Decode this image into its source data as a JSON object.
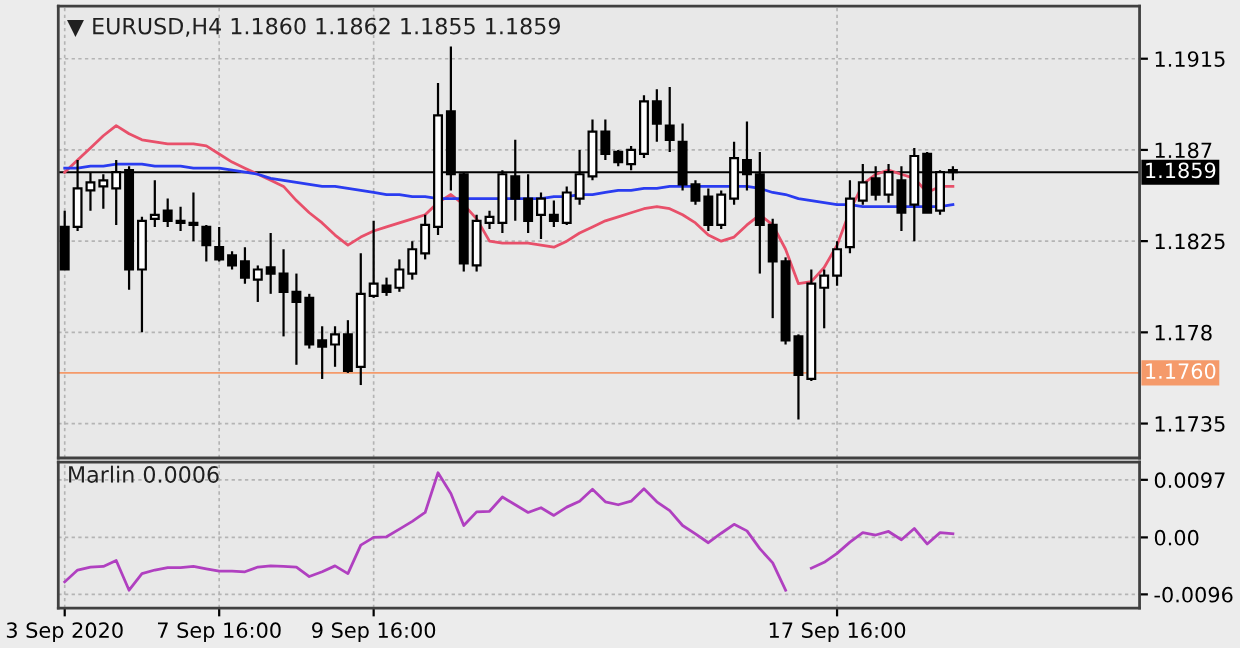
{
  "chart_data": [
    {
      "type": "candlestick",
      "title": "▼ EURUSD,H4 1.1860 1.1862 1.1855 1.1859",
      "color": "#000000",
      "categories": [
        null,
        null,
        null,
        null,
        null,
        null,
        null,
        null,
        null,
        null,
        null,
        null,
        null,
        null,
        null,
        null,
        null,
        null,
        null,
        null,
        null,
        null,
        null,
        null,
        null,
        null,
        null,
        null,
        null,
        null,
        null,
        null,
        null,
        null,
        null,
        null,
        null,
        null,
        null,
        null,
        null,
        null,
        null,
        null,
        null,
        null,
        null,
        null,
        null,
        null,
        null,
        null,
        null,
        null,
        null,
        null,
        null,
        null,
        null,
        null,
        null,
        null,
        null,
        null,
        null,
        null,
        null,
        null,
        null,
        null,
        null,
        null,
        null,
        null,
        null,
        null,
        null,
        null,
        null,
        null,
        null,
        null,
        null,
        null
      ],
      "ohlc": [
        [
          1.1832,
          1.184,
          1.1811,
          1.1811
        ],
        [
          1.1832,
          1.1865,
          1.183,
          1.1851
        ],
        [
          1.185,
          1.1859,
          1.184,
          1.1854
        ],
        [
          1.1852,
          1.1858,
          1.1841,
          1.1855
        ],
        [
          1.1851,
          1.1865,
          1.1833,
          1.1859
        ],
        [
          1.186,
          1.1862,
          1.1801,
          1.1811
        ],
        [
          1.1811,
          1.1837,
          1.178,
          1.1835
        ],
        [
          1.1836,
          1.1855,
          1.1832,
          1.1838
        ],
        [
          1.184,
          1.1846,
          1.1832,
          1.1835
        ],
        [
          1.1835,
          1.1842,
          1.183,
          1.1834
        ],
        [
          1.1834,
          1.1849,
          1.1825,
          1.1833
        ],
        [
          1.1832,
          1.1833,
          1.1815,
          1.1823
        ],
        [
          1.1822,
          1.1832,
          1.1815,
          1.1816
        ],
        [
          1.1818,
          1.182,
          1.1811,
          1.1813
        ],
        [
          1.1815,
          1.1822,
          1.1804,
          1.1807
        ],
        [
          1.1806,
          1.1813,
          1.1795,
          1.1811
        ],
        [
          1.1812,
          1.1829,
          1.1799,
          1.1809
        ],
        [
          1.1809,
          1.1821,
          1.1778,
          1.18
        ],
        [
          1.18,
          1.1809,
          1.1764,
          1.1795
        ],
        [
          1.1797,
          1.1799,
          1.1772,
          1.1774
        ],
        [
          1.1776,
          1.1783,
          1.1757,
          1.1773
        ],
        [
          1.1774,
          1.1783,
          1.1763,
          1.1779
        ],
        [
          1.1779,
          1.1786,
          1.176,
          1.1761
        ],
        [
          1.1763,
          1.1819,
          1.1754,
          1.1799
        ],
        [
          1.1798,
          1.1835,
          1.1797,
          1.1804
        ],
        [
          1.1803,
          1.1807,
          1.1798,
          1.18
        ],
        [
          1.1802,
          1.1816,
          1.18,
          1.1811
        ],
        [
          1.1809,
          1.1825,
          1.1806,
          1.1821
        ],
        [
          1.1819,
          1.1838,
          1.1816,
          1.1833
        ],
        [
          1.1832,
          1.1903,
          1.1828,
          1.1887
        ],
        [
          1.1889,
          1.1921,
          1.185,
          1.1858
        ],
        [
          1.1858,
          1.1859,
          1.181,
          1.1814
        ],
        [
          1.1813,
          1.1838,
          1.181,
          1.1835
        ],
        [
          1.1834,
          1.184,
          1.1831,
          1.1837
        ],
        [
          1.1834,
          1.186,
          1.1829,
          1.1858
        ],
        [
          1.1857,
          1.1875,
          1.1835,
          1.1846
        ],
        [
          1.1846,
          1.1858,
          1.1829,
          1.1835
        ],
        [
          1.1838,
          1.1849,
          1.1826,
          1.1846
        ],
        [
          1.1838,
          1.1845,
          1.1832,
          1.1835
        ],
        [
          1.1834,
          1.1852,
          1.1833,
          1.1849
        ],
        [
          1.1846,
          1.187,
          1.1843,
          1.1858
        ],
        [
          1.1857,
          1.1885,
          1.1855,
          1.1879
        ],
        [
          1.1879,
          1.1885,
          1.1865,
          1.1868
        ],
        [
          1.1869,
          1.187,
          1.1862,
          1.1864
        ],
        [
          1.1863,
          1.1872,
          1.186,
          1.187
        ],
        [
          1.1868,
          1.1897,
          1.1866,
          1.1894
        ],
        [
          1.1894,
          1.19,
          1.1874,
          1.1883
        ],
        [
          1.1882,
          1.1901,
          1.1869,
          1.1875
        ],
        [
          1.1874,
          1.1883,
          1.185,
          1.1853
        ],
        [
          1.1853,
          1.1855,
          1.1843,
          1.1845
        ],
        [
          1.1847,
          1.1851,
          1.183,
          1.1833
        ],
        [
          1.1833,
          1.185,
          1.1831,
          1.1848
        ],
        [
          1.1846,
          1.1874,
          1.1843,
          1.1866
        ],
        [
          1.1865,
          1.1884,
          1.185,
          1.1858
        ],
        [
          1.1858,
          1.1869,
          1.1809,
          1.1833
        ],
        [
          1.1833,
          1.1836,
          1.1787,
          1.1815
        ],
        [
          1.1815,
          1.1817,
          1.1774,
          1.1776
        ],
        [
          1.1778,
          1.1779,
          1.1737,
          1.1759
        ],
        [
          1.1757,
          1.1811,
          1.1756,
          1.1804
        ],
        [
          1.1802,
          1.1811,
          1.1782,
          1.1808
        ],
        [
          1.1808,
          1.1825,
          1.1803,
          1.1821
        ],
        [
          1.1822,
          1.1855,
          1.1819,
          1.1846
        ],
        [
          1.1845,
          1.1863,
          1.1843,
          1.1854
        ],
        [
          1.1856,
          1.1862,
          1.1845,
          1.1848
        ],
        [
          1.1848,
          1.1863,
          1.1844,
          1.1859
        ],
        [
          1.1855,
          1.1862,
          1.183,
          1.1839
        ],
        [
          1.1843,
          1.1871,
          1.1825,
          1.1867
        ],
        [
          1.1868,
          1.1869,
          1.1839,
          1.1839
        ],
        [
          1.184,
          1.186,
          1.1838,
          1.1859
        ],
        [
          1.186,
          1.1862,
          1.1855,
          1.1859
        ],
        null,
        null,
        null,
        null,
        null,
        null,
        null,
        null,
        null,
        null,
        null,
        null,
        null,
        null
      ],
      "series": [
        {
          "type": "line",
          "color": "#e8506a",
          "values": [
            1.1859,
            1.1865,
            1.1871,
            1.1877,
            1.1882,
            1.1878,
            1.1875,
            1.1874,
            1.1873,
            1.1873,
            1.1873,
            1.1872,
            1.1868,
            1.1864,
            1.1861,
            1.1858,
            1.1855,
            1.1852,
            1.1845,
            1.1839,
            1.1834,
            1.1828,
            1.1823,
            1.1827,
            1.183,
            1.1832,
            1.1834,
            1.1836,
            1.1838,
            1.1844,
            1.1848,
            1.1843,
            1.1836,
            1.1825,
            1.1824,
            1.1824,
            1.1824,
            1.1823,
            1.1822,
            1.1825,
            1.1829,
            1.1832,
            1.1835,
            1.1837,
            1.1839,
            1.1841,
            1.1842,
            1.1841,
            1.1838,
            1.1834,
            1.1828,
            1.1825,
            1.1827,
            1.1833,
            1.1838,
            1.1833,
            1.1821,
            1.1804,
            1.1805,
            1.1812,
            1.1823,
            1.184,
            1.1853,
            1.1858,
            1.186,
            1.1858,
            1.1856,
            1.1849,
            1.1852,
            1.1852,
            null,
            null,
            null,
            null,
            null,
            null,
            null,
            null,
            null,
            null,
            null,
            null,
            null,
            null
          ]
        },
        {
          "type": "line",
          "color": "#2a3cf0",
          "values": [
            1.1861,
            1.1861,
            1.1862,
            1.1862,
            1.1863,
            1.1863,
            1.1863,
            1.1862,
            1.1862,
            1.1862,
            1.1861,
            1.1861,
            1.1861,
            1.186,
            1.1859,
            1.1858,
            1.1856,
            1.1855,
            1.1854,
            1.1853,
            1.1852,
            1.1852,
            1.1851,
            1.185,
            1.1849,
            1.1848,
            1.1848,
            1.1847,
            1.1847,
            1.1846,
            1.1846,
            1.1846,
            1.1846,
            1.1846,
            1.1846,
            1.1846,
            1.1846,
            1.1846,
            1.1847,
            1.1847,
            1.1848,
            1.1848,
            1.1849,
            1.185,
            1.185,
            1.1851,
            1.1851,
            1.1852,
            1.1852,
            1.1852,
            1.1852,
            1.1852,
            1.1852,
            1.1852,
            1.1851,
            1.1849,
            1.1848,
            1.1846,
            1.1845,
            1.1844,
            1.1843,
            1.1843,
            1.1842,
            1.1842,
            1.1842,
            1.1842,
            1.1842,
            1.1842,
            1.1842,
            1.1843,
            null,
            null,
            null,
            null,
            null,
            null,
            null,
            null,
            null,
            null,
            null,
            null,
            null,
            null
          ]
        }
      ],
      "ylim": [
        1.1718,
        1.1941
      ],
      "yticks": [
        1.1735,
        1.178,
        1.1825,
        1.187,
        1.1915
      ],
      "ref_lines": [
        {
          "axis": "y",
          "value": 1.1859,
          "label": "1.1859",
          "color": "#000000"
        },
        {
          "axis": "y",
          "value": 1.176,
          "label": "1.1760",
          "color": "#f59a6a"
        }
      ],
      "grid": true,
      "tick_labels": "y"
    },
    {
      "type": "line",
      "title": "Marlin 0.0006",
      "categories": [
        "3 Sep 2020",
        null,
        null,
        null,
        null,
        null,
        null,
        null,
        null,
        null,
        null,
        null,
        "7 Sep 16:00",
        null,
        null,
        null,
        null,
        null,
        null,
        null,
        null,
        null,
        null,
        null,
        "9 Sep 16:00",
        null,
        null,
        null,
        null,
        null,
        null,
        null,
        null,
        null,
        null,
        null,
        null,
        null,
        null,
        null,
        null,
        null,
        null,
        null,
        null,
        null,
        null,
        null,
        null,
        null,
        null,
        null,
        null,
        null,
        null,
        null,
        null,
        null,
        null,
        null,
        "17 Sep 16:00",
        null,
        null,
        null,
        null,
        null,
        null,
        null,
        null,
        null,
        null,
        null,
        null,
        null,
        null,
        null,
        null,
        null,
        null,
        null,
        null,
        null,
        null,
        null
      ],
      "series": [
        {
          "color": "#b040c0",
          "values": [
            -0.0075,
            -0.0055,
            -0.005,
            -0.0049,
            -0.0039,
            -0.0089,
            -0.0061,
            -0.0055,
            -0.0051,
            -0.0051,
            -0.0049,
            -0.0053,
            -0.0057,
            -0.0057,
            -0.0058,
            -0.005,
            -0.0048,
            -0.0049,
            -0.005,
            -0.0066,
            -0.0058,
            -0.0048,
            -0.0061,
            -0.0013,
            0.0,
            0.0001,
            0.0014,
            0.0027,
            0.0042,
            0.0109,
            0.0074,
            0.002,
            0.0043,
            0.0044,
            0.0068,
            0.0055,
            0.0042,
            0.005,
            0.0037,
            0.0051,
            0.0061,
            0.0081,
            0.006,
            0.0055,
            0.0061,
            0.0082,
            0.006,
            0.0045,
            0.002,
            0.0006,
            -0.0009,
            0.0007,
            0.0022,
            0.0011,
            -0.0019,
            -0.0043,
            -0.0089,
            null,
            -0.0052,
            -0.0042,
            -0.0027,
            -0.0008,
            0.0008,
            0.0004,
            0.001,
            -0.0004,
            0.0015,
            -0.0011,
            0.0008,
            0.0006,
            null,
            null,
            null,
            null,
            null,
            null,
            null,
            null,
            null,
            null,
            null,
            null,
            null,
            null
          ]
        }
      ],
      "ylim": [
        -0.0119,
        0.0127
      ],
      "yticks": [
        -0.0096,
        {
          "value": 0,
          "label": "0.00"
        },
        0.0097
      ],
      "grid": true
    }
  ]
}
